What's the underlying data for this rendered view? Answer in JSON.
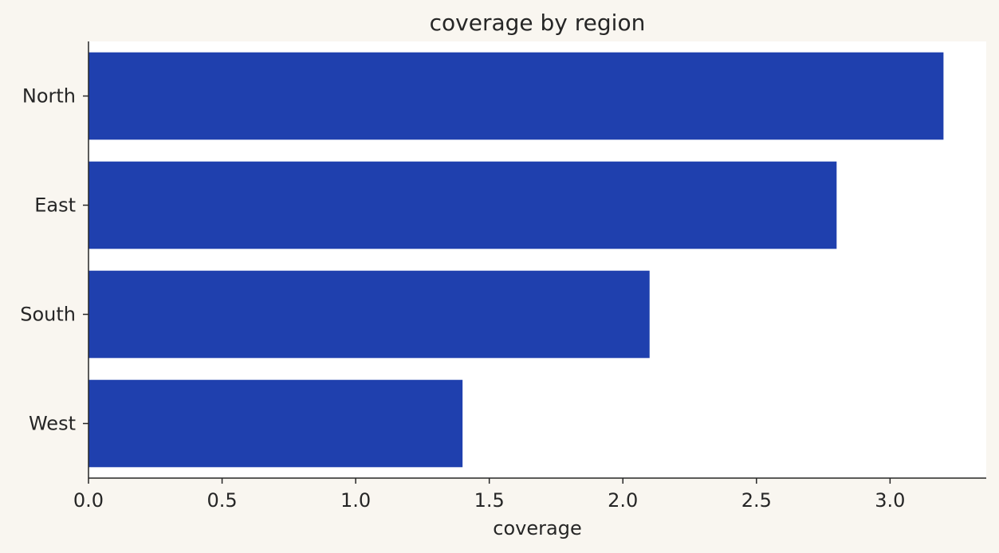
{
  "chart_data": {
    "type": "bar",
    "orientation": "horizontal",
    "title": "coverage by region",
    "xlabel": "coverage",
    "ylabel": "",
    "categories": [
      "North",
      "East",
      "South",
      "West"
    ],
    "values": [
      3.2,
      2.8,
      2.1,
      1.4
    ],
    "xlim": [
      0,
      3.36
    ],
    "xticks": [
      "0.0",
      "0.5",
      "1.0",
      "1.5",
      "2.0",
      "2.5",
      "3.0"
    ],
    "grid": false,
    "legend": "none",
    "colors": {
      "bar": "#1f40ae",
      "plot_background": "#ffffff",
      "page_background": "#f9f6f0",
      "axis": "#262626",
      "text": "#262626"
    }
  }
}
